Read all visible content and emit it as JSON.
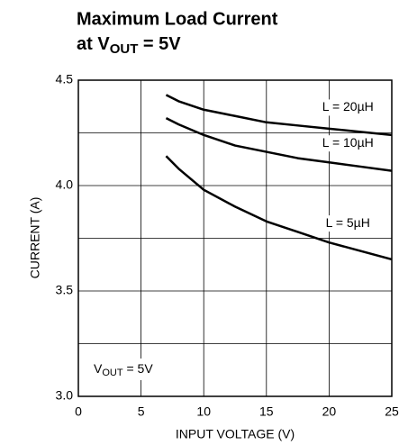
{
  "chart_data": {
    "type": "line",
    "title": "Maximum Load Current",
    "subtitle_parts": [
      "at V",
      "OUT",
      " = 5V"
    ],
    "xlabel": "INPUT VOLTAGE (V)",
    "ylabel": "CURRENT (A)",
    "x": [
      7,
      8,
      10,
      12.5,
      15,
      17.5,
      20,
      22.5,
      25
    ],
    "series": [
      {
        "name": "L = 20µH",
        "color": "#000000",
        "values": [
          4.43,
          4.4,
          4.36,
          4.33,
          4.3,
          4.285,
          4.27,
          4.255,
          4.24
        ]
      },
      {
        "name": "L = 10µH",
        "color": "#000000",
        "values": [
          4.32,
          4.29,
          4.24,
          4.19,
          4.16,
          4.13,
          4.11,
          4.09,
          4.07
        ]
      },
      {
        "name": "L = 5µH",
        "color": "#000000",
        "values": [
          4.14,
          4.08,
          3.98,
          3.9,
          3.83,
          3.78,
          3.73,
          3.69,
          3.65
        ]
      }
    ],
    "annotation_parts": [
      "V",
      "OUT",
      " = 5V"
    ],
    "xlim": [
      0,
      25
    ],
    "xticks": [
      0,
      5,
      10,
      15,
      20,
      25
    ],
    "ylim": [
      3,
      4.5
    ],
    "yticks": [
      {
        "value": 3,
        "label": "3.0"
      },
      3.5,
      {
        "value": 4,
        "label": "4.0"
      },
      4.5
    ],
    "yminor": [
      3.25,
      3.75,
      4.25
    ],
    "grid": true
  }
}
